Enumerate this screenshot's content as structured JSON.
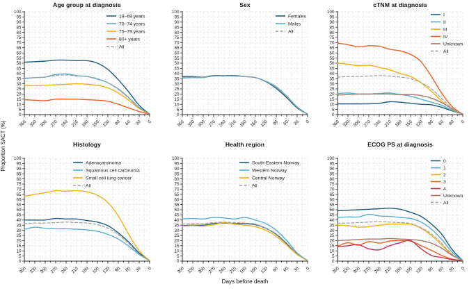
{
  "figure": {
    "ylabel": "Proportion SACT (%)",
    "xlabel": "Days before death"
  },
  "colors": {
    "darkblue": "#1e5c7d",
    "lightblue": "#56aecd",
    "yellow": "#eeb01c",
    "orange": "#eb6023",
    "red": "#c5304a",
    "brown": "#a3766b",
    "gray": "#9c9c9c",
    "axis": "#2b2b2b",
    "grid": "#e3e3e3",
    "text": "#1a1a1a"
  },
  "axes": {
    "x_ticks": [
      360,
      330,
      300,
      270,
      240,
      210,
      180,
      150,
      120,
      90,
      60,
      30,
      0
    ],
    "x_minor_step": 15,
    "y_min": 0,
    "y_max": 100,
    "y_tick_step": 5,
    "grid": true,
    "legend_position": "top-right"
  },
  "chart_data": [
    {
      "type": "line",
      "title": "Age group at diagnosis",
      "x": [
        360,
        330,
        300,
        270,
        240,
        210,
        180,
        150,
        120,
        90,
        60,
        30,
        0
      ],
      "ylim": [
        0,
        100
      ],
      "series": [
        {
          "name": "18–69 years",
          "color": "darkblue",
          "dashed": false,
          "values": [
            51,
            51.5,
            52,
            53,
            53,
            52.5,
            52.5,
            50,
            44,
            34,
            22,
            9,
            0.5
          ]
        },
        {
          "name": "70–74 years",
          "color": "lightblue",
          "dashed": false,
          "values": [
            35,
            36,
            36.5,
            39,
            39.5,
            38,
            37,
            34.5,
            31,
            25,
            16.5,
            7,
            0.5
          ]
        },
        {
          "name": "75–79 years",
          "color": "yellow",
          "dashed": false,
          "values": [
            28.5,
            28,
            28.5,
            29,
            29.5,
            30,
            29.5,
            28.5,
            26,
            21,
            14,
            6,
            0.5
          ]
        },
        {
          "name": "80+ years",
          "color": "orange",
          "dashed": false,
          "values": [
            14.5,
            14,
            13.5,
            15,
            15,
            15,
            14.5,
            14,
            13,
            10,
            6.5,
            3,
            0.5
          ]
        },
        {
          "name": "All",
          "color": "gray",
          "dashed": true,
          "values": [
            35.5,
            36,
            36.5,
            38,
            38.5,
            37.5,
            37,
            35,
            31,
            24.5,
            16,
            6.5,
            0.5
          ]
        }
      ]
    },
    {
      "type": "line",
      "title": "Sex",
      "x": [
        360,
        330,
        300,
        270,
        240,
        210,
        180,
        150,
        120,
        90,
        60,
        30,
        0
      ],
      "ylim": [
        0,
        100
      ],
      "series": [
        {
          "name": "Females",
          "color": "darkblue",
          "dashed": false,
          "values": [
            37,
            37,
            36.5,
            38,
            38,
            38,
            37,
            36,
            32,
            25.5,
            16.5,
            6.5,
            0.5
          ]
        },
        {
          "name": "Males",
          "color": "lightblue",
          "dashed": false,
          "values": [
            35.5,
            36,
            36,
            37.5,
            37.5,
            37.5,
            37,
            36,
            32.5,
            27,
            18,
            7.5,
            0.5
          ]
        },
        {
          "name": "All",
          "color": "gray",
          "dashed": true,
          "values": [
            36,
            36.5,
            36.5,
            37.5,
            38,
            37.5,
            37,
            36,
            32,
            26.5,
            17.5,
            7,
            0.5
          ]
        }
      ]
    },
    {
      "type": "line",
      "title": "cTNM at diagnosis",
      "x": [
        360,
        330,
        300,
        270,
        240,
        210,
        180,
        150,
        120,
        90,
        60,
        30,
        0
      ],
      "ylim": [
        0,
        100
      ],
      "series": [
        {
          "name": "I",
          "color": "darkblue",
          "dashed": false,
          "values": [
            10.5,
            10.5,
            10.5,
            10.5,
            11,
            12.5,
            12,
            11,
            10,
            9.5,
            7,
            3.5,
            0.5
          ]
        },
        {
          "name": "II",
          "color": "lightblue",
          "dashed": false,
          "values": [
            20.5,
            21,
            20,
            20,
            20.5,
            21,
            19.5,
            18,
            15,
            12,
            9,
            4,
            0.5
          ]
        },
        {
          "name": "III",
          "color": "yellow",
          "dashed": false,
          "values": [
            50,
            49,
            47.5,
            48,
            46,
            43.5,
            40,
            37,
            31,
            22.5,
            13,
            5,
            0.5
          ]
        },
        {
          "name": "IV",
          "color": "orange",
          "dashed": false,
          "values": [
            69.5,
            68,
            66,
            67,
            66.5,
            63.5,
            62,
            58.5,
            51.5,
            37,
            20.5,
            7.5,
            0.5
          ]
        },
        {
          "name": "Unknown",
          "color": "brown",
          "dashed": false,
          "values": [
            19,
            19.5,
            20,
            20,
            20,
            20,
            19.5,
            19.5,
            18.5,
            16,
            11.5,
            5.5,
            0.5
          ]
        },
        {
          "name": "All",
          "color": "gray",
          "dashed": true,
          "values": [
            36.5,
            37,
            37,
            37.5,
            38,
            37.5,
            36.5,
            35,
            31,
            25,
            15.5,
            6,
            0.5
          ]
        }
      ]
    },
    {
      "type": "line",
      "title": "Histology",
      "x": [
        360,
        330,
        300,
        270,
        240,
        210,
        180,
        150,
        120,
        90,
        60,
        30,
        0
      ],
      "ylim": [
        0,
        100
      ],
      "series": [
        {
          "name": "Adenocarcinoma",
          "color": "darkblue",
          "dashed": false,
          "values": [
            40,
            40,
            40,
            41.5,
            41,
            41,
            39.5,
            38,
            34.5,
            27.5,
            18.5,
            8,
            0.5
          ]
        },
        {
          "name": "Squamous cell carcinoma",
          "color": "lightblue",
          "dashed": false,
          "values": [
            31,
            33,
            32,
            31.5,
            31.5,
            31,
            30.5,
            29,
            26,
            21.5,
            14.5,
            6.5,
            0.5
          ]
        },
        {
          "name": "Small cell lung cancer",
          "color": "yellow",
          "dashed": false,
          "values": [
            63,
            65,
            66.5,
            68.5,
            68,
            68.5,
            67.5,
            64,
            57,
            44,
            26,
            10,
            0.5
          ]
        },
        {
          "name": "All",
          "color": "gray",
          "dashed": true,
          "values": [
            36.5,
            37,
            37,
            37.5,
            38,
            37.5,
            37,
            35.5,
            32,
            26,
            17,
            7,
            0.5
          ]
        }
      ]
    },
    {
      "type": "line",
      "title": "Health region",
      "x": [
        360,
        330,
        300,
        270,
        240,
        210,
        180,
        150,
        120,
        90,
        60,
        30,
        0
      ],
      "ylim": [
        0,
        100
      ],
      "series": [
        {
          "name": "South-Eastern Norway",
          "color": "darkblue",
          "dashed": false,
          "values": [
            34.5,
            35,
            35,
            36.5,
            37,
            36.5,
            36.5,
            35.5,
            32,
            26,
            17,
            7,
            0.5
          ]
        },
        {
          "name": "Western Norway",
          "color": "lightblue",
          "dashed": false,
          "values": [
            41,
            41.5,
            41,
            42.5,
            42,
            41,
            42.5,
            40,
            36.5,
            30,
            20,
            8,
            0.5
          ]
        },
        {
          "name": "Central Norway",
          "color": "yellow",
          "dashed": false,
          "values": [
            34,
            34.5,
            34,
            35.5,
            37.5,
            36,
            35,
            33.5,
            30,
            24,
            15.5,
            6.5,
            0.5
          ]
        },
        {
          "name": "All",
          "color": "gray",
          "dashed": true,
          "values": [
            36,
            36.5,
            36.5,
            37.5,
            38,
            37.5,
            37,
            36,
            32,
            26.5,
            17.5,
            7,
            0.5
          ]
        }
      ]
    },
    {
      "type": "line",
      "title": "ECOG PS at diagnosis",
      "x": [
        360,
        330,
        300,
        270,
        240,
        210,
        180,
        150,
        120,
        90,
        60,
        30,
        0
      ],
      "ylim": [
        0,
        100
      ],
      "series": [
        {
          "name": "0",
          "color": "darkblue",
          "dashed": false,
          "values": [
            49,
            49.5,
            50,
            50.5,
            51,
            51.5,
            50.5,
            47.5,
            43.5,
            36,
            26,
            11,
            0.5
          ]
        },
        {
          "name": "1",
          "color": "lightblue",
          "dashed": false,
          "values": [
            42.5,
            43,
            43,
            45.5,
            44,
            43.5,
            42.5,
            41.5,
            38,
            31,
            21,
            8.5,
            0.5
          ]
        },
        {
          "name": "2",
          "color": "yellow",
          "dashed": false,
          "values": [
            35,
            34.5,
            33,
            33.5,
            35,
            36,
            36,
            36,
            32,
            25,
            15.5,
            6,
            0.5
          ]
        },
        {
          "name": "3",
          "color": "orange",
          "dashed": false,
          "values": [
            14.5,
            18,
            15.5,
            19,
            17.5,
            19.5,
            20,
            19.5,
            15,
            10.5,
            5.5,
            2,
            0.5
          ]
        },
        {
          "name": "4",
          "color": "red",
          "dashed": false,
          "values": [
            14,
            15,
            16,
            12,
            11,
            15,
            18,
            20,
            12,
            5.5,
            3.5,
            1.5,
            0.5
          ]
        },
        {
          "name": "Unknown",
          "color": "brown",
          "dashed": false,
          "values": [
            20,
            20.5,
            21,
            21.5,
            21.5,
            22,
            21.5,
            21,
            20,
            17.5,
            12.5,
            5.5,
            0.5
          ]
        },
        {
          "name": "All",
          "color": "gray",
          "dashed": true,
          "values": [
            37,
            37,
            37.5,
            38,
            38.5,
            38,
            37.5,
            36.5,
            32.5,
            26.5,
            17,
            6.5,
            0.5
          ]
        }
      ]
    }
  ]
}
